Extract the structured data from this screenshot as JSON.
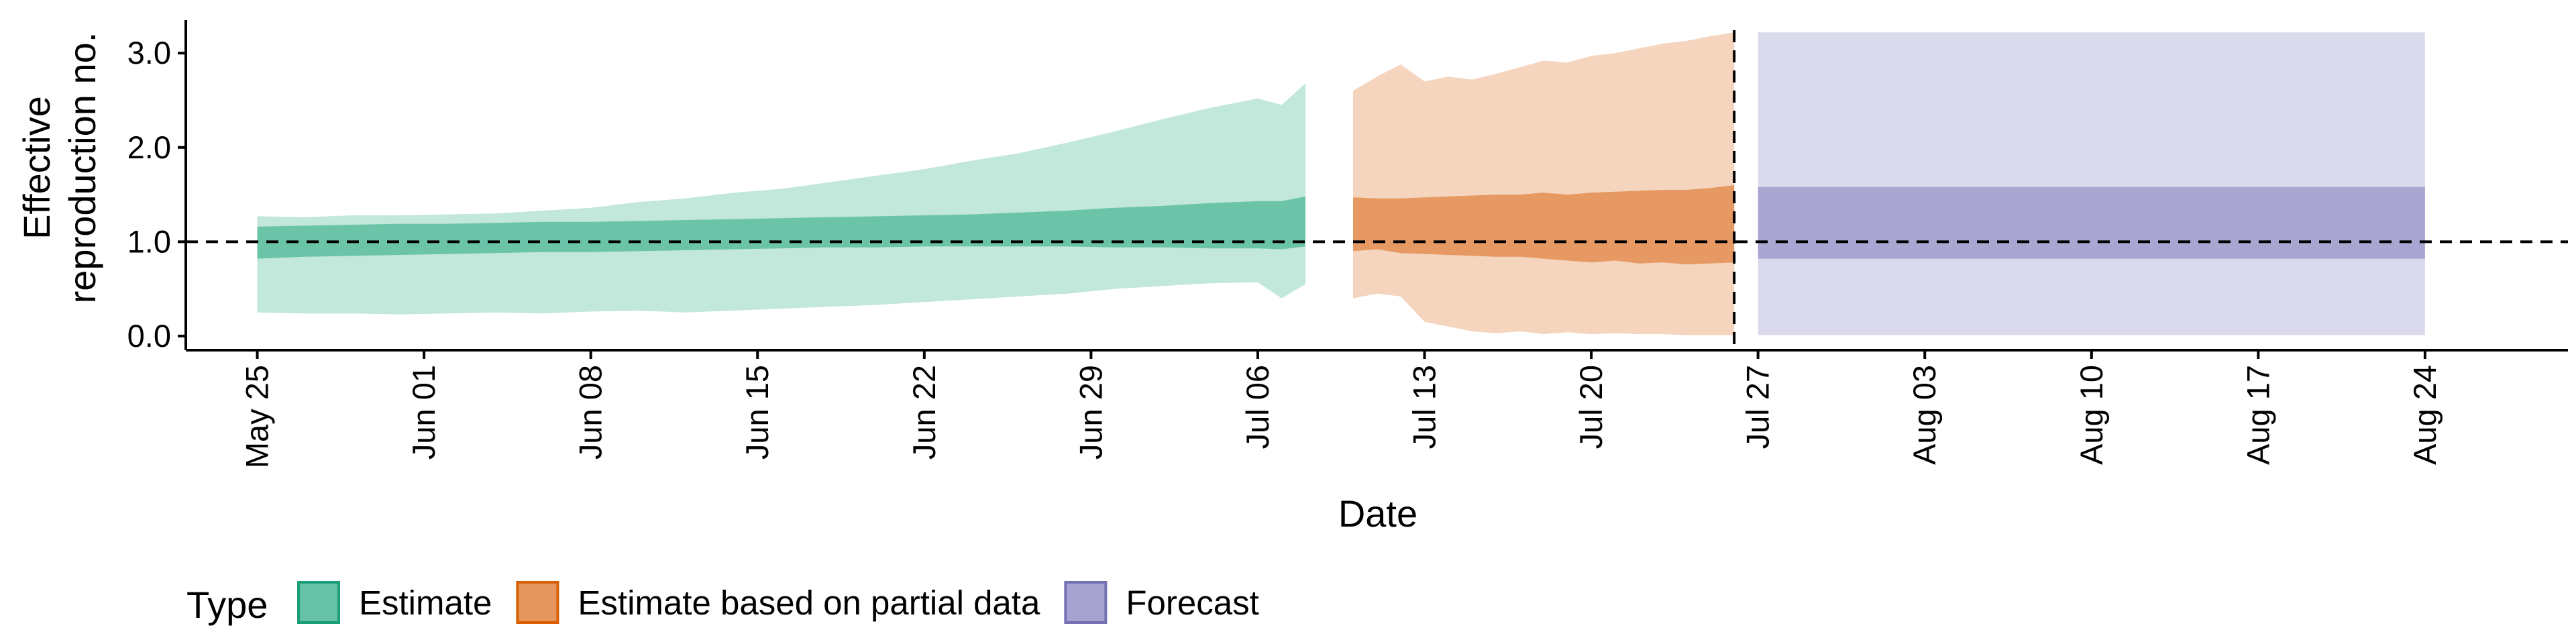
{
  "chart_data": {
    "type": "area",
    "xlabel": "Date",
    "ylabel": "Effective reproduction no.",
    "ylabel_lines": [
      "Effective",
      "reproduction no."
    ],
    "x_range": [
      "2020-05-22",
      "2020-08-30"
    ],
    "ylim": [
      -0.15,
      3.35
    ],
    "y_ticks": [
      0.0,
      1.0,
      2.0,
      3.0
    ],
    "y_tick_labels": [
      "0.0",
      "1.0",
      "2.0",
      "3.0"
    ],
    "x_ticks": [
      "2020-05-25",
      "2020-06-01",
      "2020-06-08",
      "2020-06-15",
      "2020-06-22",
      "2020-06-29",
      "2020-07-06",
      "2020-07-13",
      "2020-07-20",
      "2020-07-27",
      "2020-08-03",
      "2020-08-10",
      "2020-08-17",
      "2020-08-24"
    ],
    "x_tick_labels": [
      "May 25",
      "Jun 01",
      "Jun 08",
      "Jun 15",
      "Jun 22",
      "Jun 29",
      "Jul 06",
      "Jul 13",
      "Jul 20",
      "Jul 27",
      "Aug 03",
      "Aug 10",
      "Aug 17",
      "Aug 24"
    ],
    "reference_hline": 1.0,
    "reference_vline": "2020-07-26",
    "grid": false,
    "legend_position": "bottom",
    "legend_title": "Type",
    "series": [
      {
        "name": "Estimate",
        "color": "#66c2a5",
        "stroke": "#1b9e77",
        "x": [
          "2020-05-25",
          "2020-05-27",
          "2020-05-29",
          "2020-05-31",
          "2020-06-02",
          "2020-06-04",
          "2020-06-06",
          "2020-06-08",
          "2020-06-10",
          "2020-06-12",
          "2020-06-14",
          "2020-06-16",
          "2020-06-18",
          "2020-06-20",
          "2020-06-22",
          "2020-06-24",
          "2020-06-26",
          "2020-06-28",
          "2020-06-30",
          "2020-07-02",
          "2020-07-04",
          "2020-07-06",
          "2020-07-07",
          "2020-07-08"
        ],
        "lower90": [
          0.25,
          0.24,
          0.24,
          0.23,
          0.24,
          0.25,
          0.24,
          0.26,
          0.27,
          0.25,
          0.27,
          0.29,
          0.31,
          0.33,
          0.36,
          0.39,
          0.42,
          0.45,
          0.5,
          0.53,
          0.56,
          0.57,
          0.4,
          0.55
        ],
        "upper90": [
          1.27,
          1.26,
          1.28,
          1.28,
          1.29,
          1.3,
          1.33,
          1.36,
          1.42,
          1.46,
          1.52,
          1.56,
          1.63,
          1.7,
          1.77,
          1.86,
          1.94,
          2.05,
          2.17,
          2.3,
          2.42,
          2.52,
          2.45,
          2.68
        ],
        "lower50": [
          0.82,
          0.84,
          0.85,
          0.86,
          0.87,
          0.88,
          0.89,
          0.89,
          0.9,
          0.91,
          0.92,
          0.93,
          0.94,
          0.94,
          0.95,
          0.95,
          0.95,
          0.95,
          0.94,
          0.94,
          0.93,
          0.93,
          0.92,
          0.95
        ],
        "upper50": [
          1.16,
          1.17,
          1.18,
          1.19,
          1.19,
          1.2,
          1.21,
          1.21,
          1.22,
          1.23,
          1.24,
          1.25,
          1.26,
          1.27,
          1.28,
          1.29,
          1.31,
          1.33,
          1.36,
          1.38,
          1.41,
          1.43,
          1.43,
          1.48
        ]
      },
      {
        "name": "Estimate based on partial data",
        "color": "#e5965d",
        "stroke": "#d95f02",
        "x": [
          "2020-07-10",
          "2020-07-11",
          "2020-07-12",
          "2020-07-13",
          "2020-07-14",
          "2020-07-15",
          "2020-07-16",
          "2020-07-17",
          "2020-07-18",
          "2020-07-19",
          "2020-07-20",
          "2020-07-21",
          "2020-07-22",
          "2020-07-23",
          "2020-07-24",
          "2020-07-25",
          "2020-07-26"
        ],
        "lower90": [
          0.4,
          0.45,
          0.42,
          0.15,
          0.1,
          0.05,
          0.03,
          0.05,
          0.02,
          0.04,
          0.02,
          0.03,
          0.02,
          0.02,
          0.01,
          0.01,
          0.01
        ],
        "upper90": [
          2.6,
          2.75,
          2.88,
          2.7,
          2.75,
          2.72,
          2.78,
          2.85,
          2.92,
          2.9,
          2.97,
          3.0,
          3.05,
          3.1,
          3.13,
          3.18,
          3.22
        ],
        "lower50": [
          0.9,
          0.92,
          0.88,
          0.87,
          0.86,
          0.85,
          0.84,
          0.84,
          0.82,
          0.8,
          0.78,
          0.8,
          0.77,
          0.78,
          0.76,
          0.77,
          0.78
        ],
        "upper50": [
          1.47,
          1.46,
          1.46,
          1.47,
          1.48,
          1.49,
          1.5,
          1.5,
          1.52,
          1.5,
          1.52,
          1.53,
          1.54,
          1.55,
          1.55,
          1.57,
          1.6
        ]
      },
      {
        "name": "Forecast",
        "color": "#a6a3d0",
        "stroke": "#7570b3",
        "x": [
          "2020-07-27",
          "2020-08-24"
        ],
        "lower90": [
          0.01,
          0.01
        ],
        "upper90": [
          3.22,
          3.22
        ],
        "lower50": [
          0.82,
          0.82
        ],
        "upper50": [
          1.58,
          1.58
        ]
      }
    ]
  }
}
